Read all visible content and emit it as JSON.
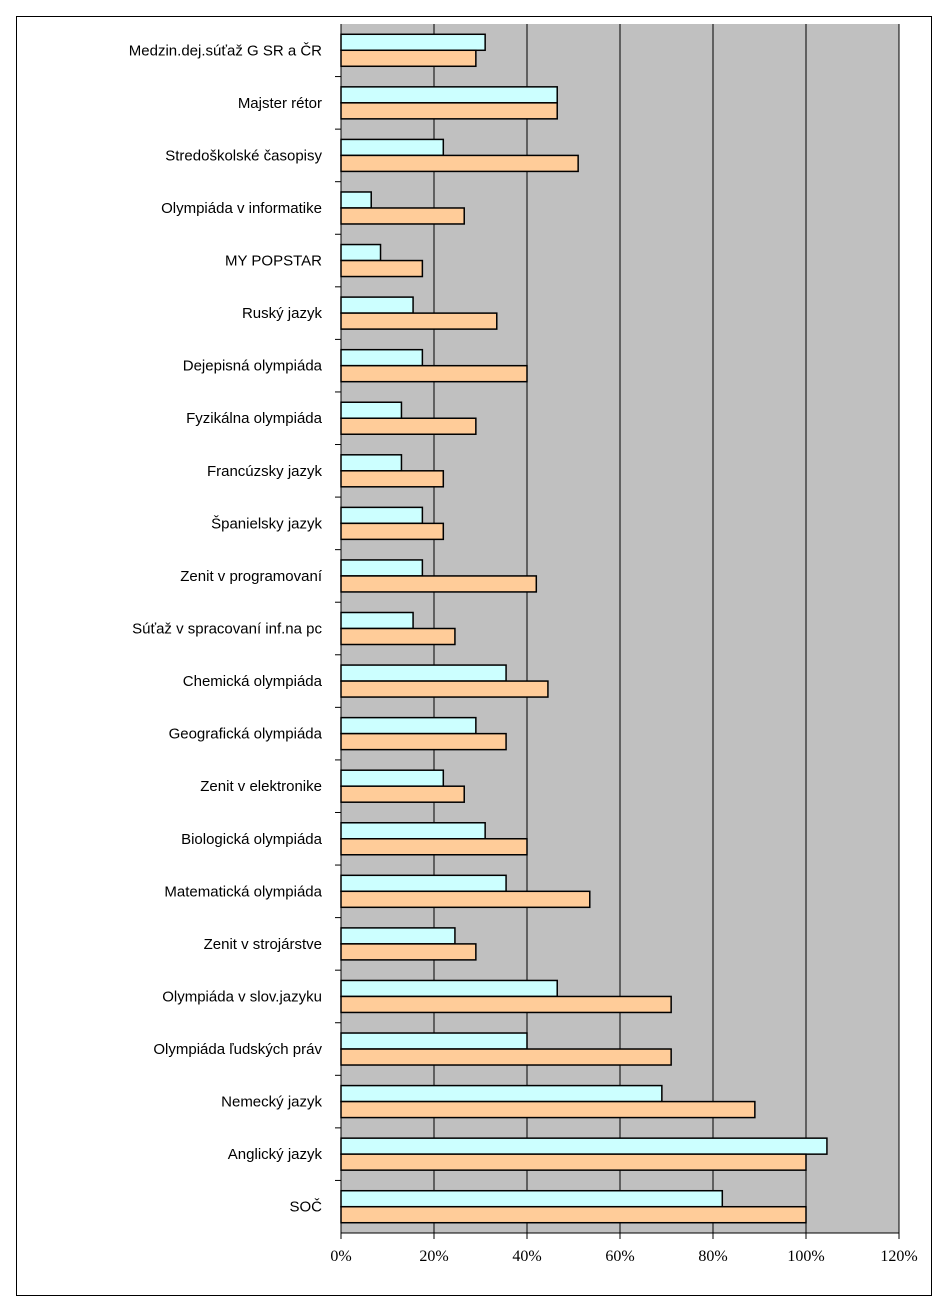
{
  "chart_data": {
    "type": "bar",
    "orientation": "horizontal",
    "title": "",
    "xlabel": "",
    "ylabel": "",
    "xlim": [
      0,
      120
    ],
    "x_ticks": [
      "0%",
      "20%",
      "40%",
      "60%",
      "80%",
      "100%",
      "120%"
    ],
    "grid": "vertical",
    "plot_background": "#c0c0c0",
    "categories": [
      "Medzin.dej.súťaž G SR a ČR",
      "Majster rétor",
      "Stredoškolské časopisy",
      "Olympiáda v informatike",
      "MY POPSTAR",
      "Ruský jazyk",
      "Dejepisná olympiáda",
      "Fyzikálna olympiáda",
      "Francúzsky jazyk",
      "Španielsky jazyk",
      "Zenit v programovaní",
      "Súťaž v spracovaní inf.na pc",
      "Chemická olympiáda",
      "Geografická olympiáda",
      "Zenit v elektronike",
      "Biologická olympiáda",
      "Matematická olympiáda",
      "Zenit v strojárstve",
      "Olympiáda v slov.jazyku",
      "Olympiáda ľudských práv",
      "Nemecký jazyk",
      "Anglický jazyk",
      "SOČ"
    ],
    "series": [
      {
        "color": "#ccffff",
        "values": [
          31,
          46.5,
          22,
          6.5,
          8.5,
          15.5,
          17.5,
          13,
          13,
          17.5,
          17.5,
          15.5,
          35.5,
          29,
          22,
          31,
          35.5,
          24.5,
          46.5,
          40,
          69,
          104.5,
          82
        ]
      },
      {
        "color": "#ffcc99",
        "values": [
          29,
          46.5,
          51,
          26.5,
          17.5,
          33.5,
          40,
          29,
          22,
          22,
          42,
          24.5,
          44.5,
          35.5,
          26.5,
          40,
          53.5,
          29,
          71,
          71,
          89,
          100,
          100
        ]
      }
    ]
  }
}
